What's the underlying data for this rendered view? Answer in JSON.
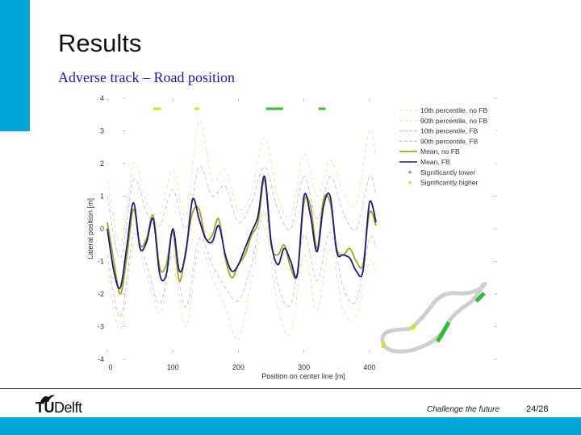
{
  "slide": {
    "title": "Results",
    "subtitle": "Adverse track – Road position",
    "accent_color": "#00a6d6"
  },
  "footer": {
    "logo_text_tu": "TU",
    "logo_text_delft": "Delft",
    "tagline": "Challenge the future",
    "page": "24/28",
    "bar_color": "#00a6d6"
  },
  "chart_data": {
    "type": "line",
    "xlabel": "Position on center line [m]",
    "ylabel": "Lateral position [m]",
    "xlim": [
      0,
      410
    ],
    "ylim": [
      -4,
      4
    ],
    "xticks": [
      "0",
      "100",
      "200",
      "300",
      "400"
    ],
    "yticks": [
      "-4",
      "-3",
      "-2",
      "-1",
      "0",
      "1",
      "2",
      "3",
      "4"
    ],
    "grid": false,
    "legend_position": "top-right",
    "legend": [
      {
        "label": "10th percentile, no FB",
        "color": "#e8e2a0",
        "style": "dashed"
      },
      {
        "label": "90th percentile, no FB",
        "color": "#e8e2a0",
        "style": "dashed"
      },
      {
        "label": "10th percentile, FB",
        "color": "#b8b8e0",
        "style": "dashed"
      },
      {
        "label": "90th percentile, FB",
        "color": "#b8b8e0",
        "style": "dashed"
      },
      {
        "label": "Mean, no FB",
        "color": "#a8a020",
        "style": "solid"
      },
      {
        "label": "Mean, FB",
        "color": "#1a1a80",
        "style": "solid"
      },
      {
        "label": "Significantly lower",
        "color": "#33bb33",
        "style": "marker"
      },
      {
        "label": "Significantly higher",
        "color": "#dddd22",
        "style": "marker"
      }
    ],
    "series": [
      {
        "name": "Mean, no FB",
        "color": "#a8a020",
        "x": [
          0,
          10,
          20,
          30,
          40,
          50,
          60,
          70,
          80,
          90,
          100,
          110,
          120,
          130,
          140,
          150,
          160,
          170,
          180,
          190,
          200,
          210,
          220,
          230,
          240,
          250,
          260,
          270,
          280,
          290,
          300,
          310,
          320,
          330,
          340,
          350,
          360,
          370,
          380,
          390,
          400,
          410
        ],
        "y": [
          0.2,
          -1.0,
          -2.0,
          -0.8,
          0.6,
          -0.5,
          -0.3,
          0.4,
          -1.2,
          -1.1,
          -0.1,
          -1.6,
          -0.6,
          0.5,
          0.6,
          -0.3,
          -0.2,
          0.3,
          -0.9,
          -1.5,
          -1.1,
          -0.8,
          -0.2,
          0.2,
          1.5,
          -0.5,
          -0.8,
          -0.5,
          -1.2,
          -1.4,
          0.8,
          0.7,
          -0.6,
          0.9,
          0.8,
          -0.6,
          -0.8,
          -0.6,
          -1.0,
          -1.1,
          0.5,
          0.1
        ]
      },
      {
        "name": "Mean, FB",
        "color": "#1a1a80",
        "x": [
          0,
          10,
          20,
          30,
          40,
          50,
          60,
          70,
          80,
          90,
          100,
          110,
          120,
          130,
          140,
          150,
          160,
          170,
          180,
          190,
          200,
          210,
          220,
          230,
          240,
          250,
          260,
          270,
          280,
          290,
          300,
          310,
          320,
          330,
          340,
          350,
          360,
          370,
          380,
          390,
          400,
          410
        ],
        "y": [
          0.0,
          -1.3,
          -1.8,
          -0.5,
          0.8,
          -0.6,
          -0.4,
          0.3,
          -1.4,
          -1.4,
          0.0,
          -1.3,
          -0.7,
          0.9,
          0.3,
          -0.3,
          -0.4,
          0.1,
          -0.8,
          -1.3,
          -1.1,
          -0.6,
          -0.1,
          0.4,
          1.6,
          -0.4,
          -1.1,
          -0.6,
          -1.0,
          -1.4,
          1.0,
          0.4,
          -0.7,
          0.7,
          1.0,
          -0.7,
          -0.8,
          -0.9,
          -1.3,
          -1.3,
          0.8,
          0.2
        ]
      },
      {
        "name": "10th percentile, no FB",
        "color": "#e8e2a0",
        "x": [
          0,
          20,
          40,
          60,
          80,
          100,
          120,
          140,
          160,
          180,
          200,
          220,
          240,
          260,
          280,
          300,
          320,
          340,
          360,
          380,
          400,
          410
        ],
        "y": [
          -1.2,
          -3.1,
          -0.5,
          -1.4,
          -2.6,
          -1.2,
          -3.0,
          -0.6,
          -1.5,
          -2.4,
          -3.4,
          -1.6,
          0.1,
          -2.4,
          -3.2,
          -0.8,
          -2.5,
          -0.6,
          -2.5,
          -2.7,
          -1.0,
          -1.3
        ]
      },
      {
        "name": "90th percentile, no FB",
        "color": "#e8e2a0",
        "x": [
          0,
          20,
          40,
          60,
          80,
          100,
          120,
          140,
          160,
          180,
          200,
          220,
          240,
          260,
          280,
          300,
          320,
          340,
          360,
          380,
          400,
          410
        ],
        "y": [
          1.5,
          -0.5,
          2.0,
          0.8,
          0.5,
          1.8,
          0.4,
          3.3,
          1.5,
          1.8,
          0.6,
          1.1,
          2.8,
          1.0,
          0.4,
          2.3,
          1.0,
          2.1,
          1.1,
          0.8,
          3.0,
          2.2
        ]
      },
      {
        "name": "10th percentile, FB",
        "color": "#b8b8e0",
        "x": [
          0,
          20,
          40,
          60,
          80,
          100,
          120,
          140,
          160,
          180,
          200,
          220,
          240,
          260,
          280,
          300,
          320,
          340,
          360,
          380,
          400,
          410
        ],
        "y": [
          -0.8,
          -2.7,
          -0.2,
          -1.1,
          -2.3,
          -0.8,
          -2.4,
          -0.3,
          -1.1,
          -1.8,
          -2.2,
          -1.1,
          0.5,
          -1.7,
          -2.3,
          -0.2,
          -1.6,
          -0.1,
          -1.8,
          -2.2,
          -0.3,
          -0.6
        ]
      },
      {
        "name": "90th percentile, FB",
        "color": "#b8b8e0",
        "x": [
          0,
          20,
          40,
          60,
          80,
          100,
          120,
          140,
          160,
          180,
          200,
          220,
          240,
          260,
          280,
          300,
          320,
          340,
          360,
          380,
          400,
          410
        ],
        "y": [
          1.0,
          -0.9,
          1.5,
          0.5,
          0.1,
          1.2,
          0.0,
          1.9,
          1.0,
          1.3,
          0.2,
          0.8,
          1.9,
          0.6,
          0.0,
          1.6,
          0.3,
          1.6,
          0.5,
          0.0,
          1.6,
          1.0
        ]
      }
    ],
    "significance_markers": [
      {
        "label": "Significantly higher",
        "x_from": 70,
        "x_to": 82,
        "color": "#dddd22"
      },
      {
        "label": "Significantly higher",
        "x_from": 133,
        "x_to": 140,
        "color": "#dddd22"
      },
      {
        "label": "Significantly lower",
        "x_from": 242,
        "x_to": 268,
        "color": "#33bb33"
      },
      {
        "label": "Significantly lower",
        "x_from": 322,
        "x_to": 333,
        "color": "#33bb33"
      }
    ]
  }
}
